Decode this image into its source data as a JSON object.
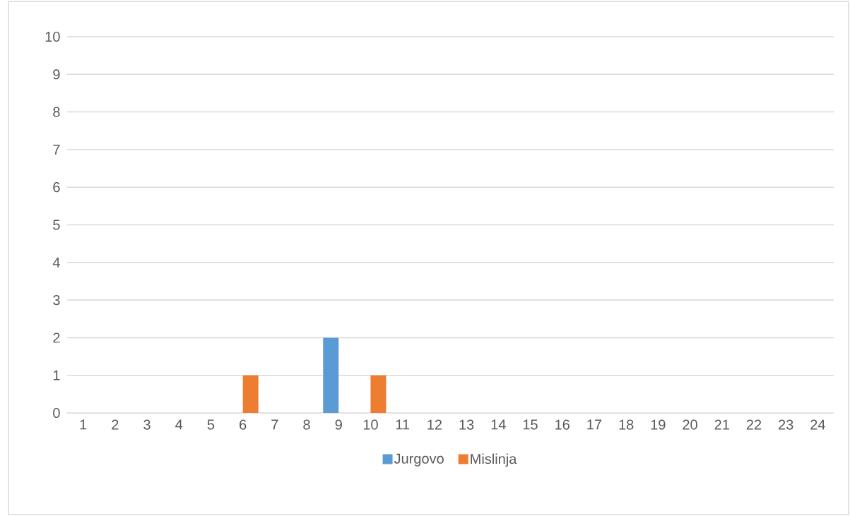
{
  "chart_data": {
    "type": "bar",
    "categories": [
      "1",
      "2",
      "3",
      "4",
      "5",
      "6",
      "7",
      "8",
      "9",
      "10",
      "11",
      "12",
      "13",
      "14",
      "15",
      "16",
      "17",
      "18",
      "19",
      "20",
      "21",
      "22",
      "23",
      "24"
    ],
    "series": [
      {
        "name": "Jurgovo",
        "color": "#5b9bd5",
        "values": [
          0,
          0,
          0,
          0,
          0,
          0,
          0,
          0,
          2,
          0,
          0,
          0,
          0,
          0,
          0,
          0,
          0,
          0,
          0,
          0,
          0,
          0,
          0,
          0
        ]
      },
      {
        "name": "Mislinja",
        "color": "#ed7d31",
        "values": [
          0,
          0,
          0,
          0,
          0,
          1,
          0,
          0,
          0,
          1,
          0,
          0,
          0,
          0,
          0,
          0,
          0,
          0,
          0,
          0,
          0,
          0,
          0,
          0
        ]
      }
    ],
    "ylim": [
      0,
      10
    ],
    "yticks": [
      0,
      1,
      2,
      3,
      4,
      5,
      6,
      7,
      8,
      9,
      10
    ],
    "grid": "y",
    "legend": "bottom"
  }
}
